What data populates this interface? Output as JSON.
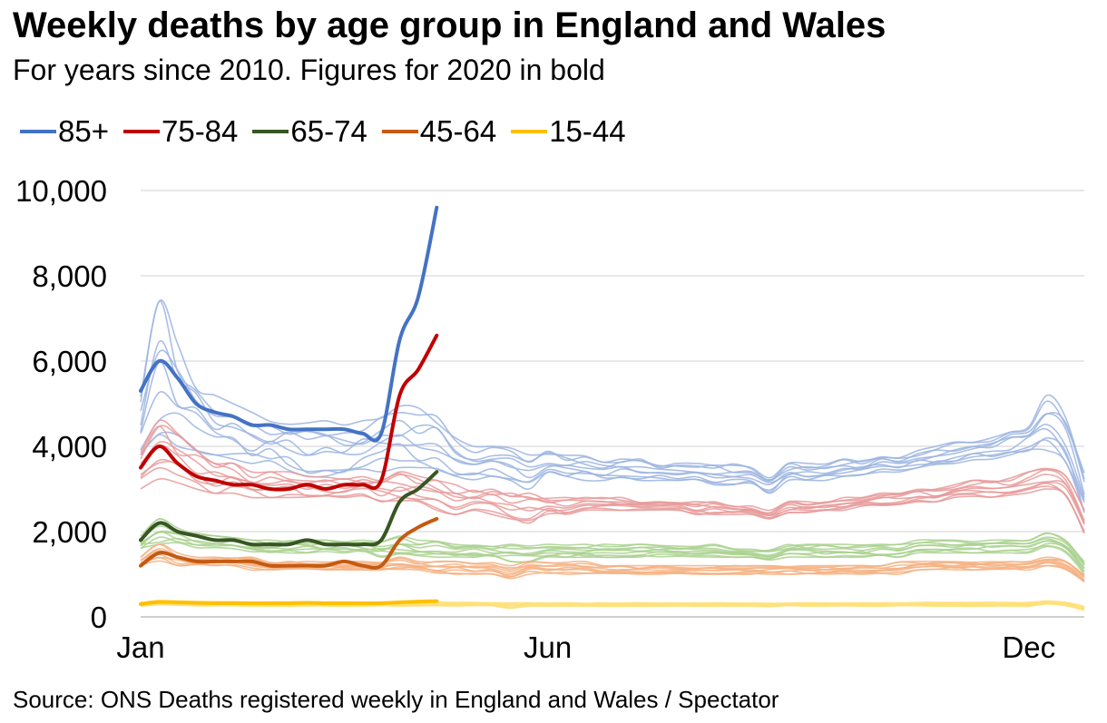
{
  "chart_data": {
    "type": "line",
    "title": "Weekly deaths by age group in England and Wales",
    "subtitle": "For years since 2010. Figures for 2020 in bold",
    "source": "Source: ONS Deaths registered weekly in England and Wales / Spectator",
    "xlabel": "",
    "ylabel": "",
    "x_tick_labels": [
      {
        "label": "Jan",
        "week": 1
      },
      {
        "label": "Jun",
        "week": 23
      },
      {
        "label": "Dec",
        "week": 49
      }
    ],
    "x_range": [
      1,
      52
    ],
    "ylim": [
      0,
      10000
    ],
    "y_ticks": [
      0,
      2000,
      4000,
      6000,
      8000,
      10000
    ],
    "y_tick_labels": [
      "0",
      "2,000",
      "4,000",
      "6,000",
      "8,000",
      "10,000"
    ],
    "grid": "horizontal",
    "legend_position": "top",
    "series": [
      {
        "name": "85+",
        "color": "#4472c4",
        "faded_color": "#9bb4e0",
        "values_2020": [
          5300,
          6000,
          5600,
          5000,
          4800,
          4700,
          4500,
          4500,
          4400,
          4400,
          4400,
          4400,
          4300,
          4300,
          6500,
          7500,
          9600
        ],
        "typical_min": [
          3800,
          4200,
          4000,
          3900,
          3800,
          3700,
          3600,
          3500,
          3400,
          3300,
          3300,
          3300,
          3400,
          3400,
          3500,
          3500,
          3400,
          3300,
          3200,
          3300,
          3200,
          3000,
          3300,
          3200,
          3200,
          3200,
          3200,
          3200,
          3200,
          3200,
          3200,
          3100,
          3100,
          3100,
          2900,
          3200,
          3200,
          3200,
          3300,
          3300,
          3400,
          3400,
          3500,
          3500,
          3600,
          3600,
          3700,
          3800,
          3900,
          3900,
          3500,
          2400
        ],
        "typical_max": [
          5200,
          7400,
          6400,
          5600,
          5200,
          5000,
          4800,
          4700,
          4600,
          4600,
          4600,
          4500,
          4600,
          4700,
          5000,
          4900,
          4700,
          4200,
          4000,
          4000,
          4000,
          3800,
          3900,
          3800,
          3800,
          3700,
          3700,
          3700,
          3600,
          3600,
          3600,
          3600,
          3600,
          3500,
          3300,
          3600,
          3600,
          3600,
          3700,
          3700,
          3800,
          3800,
          3900,
          4000,
          4100,
          4200,
          4300,
          4400,
          4500,
          5200,
          4900,
          3400
        ]
      },
      {
        "name": "75-84",
        "color": "#c00000",
        "faded_color": "#e89a9a",
        "values_2020": [
          3500,
          4000,
          3600,
          3300,
          3200,
          3100,
          3100,
          3000,
          3000,
          3100,
          3000,
          3100,
          3100,
          3200,
          5200,
          5800,
          6600
        ],
        "typical_min": [
          3000,
          3200,
          3100,
          3000,
          2900,
          2900,
          2800,
          2800,
          2800,
          2800,
          2800,
          2800,
          2800,
          2700,
          2700,
          2700,
          2500,
          2400,
          2500,
          2400,
          2300,
          2200,
          2400,
          2400,
          2500,
          2500,
          2500,
          2500,
          2500,
          2500,
          2400,
          2400,
          2400,
          2400,
          2300,
          2400,
          2400,
          2500,
          2500,
          2600,
          2600,
          2600,
          2700,
          2700,
          2800,
          2800,
          2800,
          2800,
          2900,
          3000,
          2800,
          1900
        ],
        "typical_max": [
          4000,
          4600,
          4300,
          4000,
          3700,
          3600,
          3400,
          3400,
          3400,
          3300,
          3300,
          3300,
          3300,
          3300,
          3400,
          3300,
          3200,
          3100,
          3000,
          3000,
          2900,
          2900,
          2800,
          2800,
          2800,
          2800,
          2800,
          2700,
          2700,
          2700,
          2700,
          2700,
          2600,
          2600,
          2500,
          2700,
          2700,
          2700,
          2800,
          2800,
          2900,
          2900,
          3000,
          3000,
          3100,
          3200,
          3200,
          3300,
          3400,
          3500,
          3300,
          2500
        ]
      },
      {
        "name": "65-74",
        "color": "#375623",
        "faded_color": "#a9d18e",
        "values_2020": [
          1800,
          2200,
          2000,
          1900,
          1800,
          1800,
          1700,
          1700,
          1700,
          1800,
          1700,
          1700,
          1700,
          1800,
          2700,
          3000,
          3400
        ],
        "typical_min": [
          1600,
          1700,
          1700,
          1600,
          1600,
          1600,
          1500,
          1500,
          1500,
          1500,
          1500,
          1500,
          1500,
          1400,
          1400,
          1400,
          1400,
          1400,
          1400,
          1400,
          1300,
          1300,
          1400,
          1400,
          1400,
          1400,
          1400,
          1400,
          1400,
          1400,
          1400,
          1400,
          1400,
          1400,
          1300,
          1400,
          1400,
          1400,
          1400,
          1400,
          1400,
          1400,
          1500,
          1500,
          1500,
          1500,
          1500,
          1500,
          1500,
          1600,
          1500,
          1000
        ],
        "typical_max": [
          1900,
          2300,
          2100,
          2000,
          1900,
          1900,
          1800,
          1800,
          1800,
          1800,
          1800,
          1800,
          1800,
          1800,
          1900,
          1800,
          1800,
          1700,
          1700,
          1700,
          1700,
          1700,
          1700,
          1700,
          1700,
          1700,
          1700,
          1700,
          1700,
          1700,
          1700,
          1700,
          1600,
          1600,
          1600,
          1700,
          1700,
          1700,
          1700,
          1700,
          1700,
          1700,
          1800,
          1800,
          1800,
          1800,
          1800,
          1800,
          1800,
          2000,
          1800,
          1300
        ]
      },
      {
        "name": "45-64",
        "color": "#c55a11",
        "faded_color": "#f4b183",
        "values_2020": [
          1200,
          1500,
          1400,
          1300,
          1300,
          1300,
          1300,
          1200,
          1200,
          1200,
          1200,
          1300,
          1200,
          1200,
          1800,
          2100,
          2300
        ],
        "typical_min": [
          1200,
          1300,
          1200,
          1200,
          1200,
          1200,
          1100,
          1100,
          1100,
          1100,
          1100,
          1100,
          1100,
          1100,
          1100,
          1100,
          1000,
          1000,
          1000,
          1000,
          900,
          1000,
          1000,
          1000,
          1000,
          1000,
          1000,
          1000,
          1000,
          1000,
          1000,
          1000,
          1000,
          1000,
          1000,
          1000,
          1000,
          1000,
          1000,
          1000,
          1000,
          1000,
          1100,
          1100,
          1100,
          1100,
          1100,
          1100,
          1100,
          1200,
          1100,
          800
        ],
        "typical_max": [
          1400,
          1700,
          1500,
          1400,
          1400,
          1400,
          1400,
          1300,
          1300,
          1300,
          1300,
          1300,
          1300,
          1300,
          1400,
          1300,
          1300,
          1300,
          1300,
          1300,
          1200,
          1300,
          1300,
          1300,
          1300,
          1200,
          1200,
          1200,
          1200,
          1200,
          1200,
          1200,
          1200,
          1200,
          1200,
          1200,
          1200,
          1200,
          1200,
          1200,
          1200,
          1300,
          1300,
          1300,
          1300,
          1300,
          1300,
          1300,
          1300,
          1400,
          1300,
          1000
        ]
      },
      {
        "name": "15-44",
        "color": "#ffc000",
        "faded_color": "#ffe07a",
        "values_2020": [
          300,
          350,
          340,
          330,
          320,
          320,
          320,
          320,
          320,
          330,
          320,
          320,
          320,
          320,
          340,
          360,
          370
        ],
        "typical_min": [
          250,
          280,
          270,
          260,
          260,
          260,
          250,
          250,
          250,
          250,
          250,
          250,
          250,
          250,
          250,
          250,
          250,
          250,
          250,
          250,
          200,
          250,
          250,
          250,
          250,
          250,
          250,
          250,
          250,
          250,
          250,
          250,
          250,
          250,
          230,
          250,
          250,
          250,
          250,
          250,
          250,
          250,
          250,
          250,
          250,
          250,
          250,
          250,
          250,
          300,
          250,
          150
        ],
        "typical_max": [
          350,
          380,
          370,
          360,
          360,
          360,
          350,
          350,
          350,
          350,
          350,
          350,
          350,
          350,
          360,
          350,
          350,
          340,
          340,
          340,
          330,
          330,
          330,
          330,
          330,
          330,
          330,
          330,
          330,
          330,
          330,
          330,
          330,
          330,
          320,
          330,
          330,
          330,
          330,
          330,
          330,
          330,
          340,
          340,
          340,
          340,
          340,
          340,
          340,
          380,
          340,
          250
        ]
      }
    ]
  }
}
